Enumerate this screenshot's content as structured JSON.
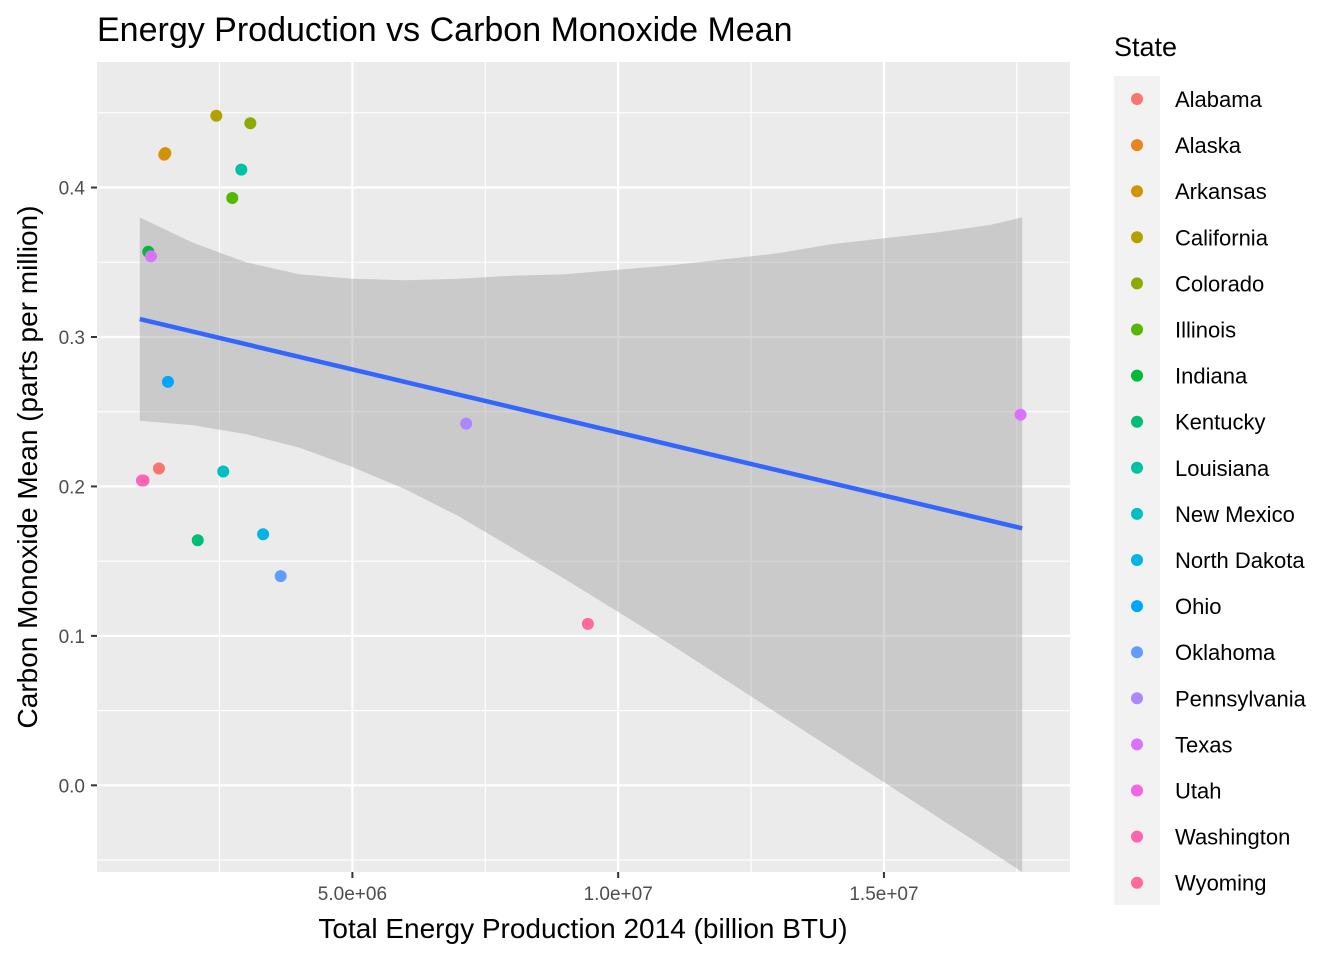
{
  "chart_data": {
    "type": "scatter",
    "title": "Energy Production vs Carbon Monoxide Mean",
    "xlabel": "Total Energy Production 2014 (billion BTU)",
    "ylabel": "Carbon Monoxide Mean (parts per million)",
    "xlim": [
      195000,
      18500000
    ],
    "ylim": [
      -0.058,
      0.484
    ],
    "x_ticks": [
      5000000,
      10000000,
      15000000
    ],
    "x_tick_labels": [
      "5.0e+06",
      "1.0e+07",
      "1.5e+07"
    ],
    "y_ticks": [
      0.0,
      0.1,
      0.2,
      0.3,
      0.4
    ],
    "y_tick_labels": [
      "0.0",
      "0.1",
      "0.2",
      "0.3",
      "0.4"
    ],
    "grid": true,
    "legend_title": "State",
    "legend_position": "right",
    "panel_background": "#ebebeb",
    "series": [
      {
        "name": "Alabama",
        "color": "#F8766D",
        "points": [
          [
            1360000,
            0.212
          ]
        ]
      },
      {
        "name": "Alaska",
        "color": "#E7851E",
        "points": [
          [
            1460000,
            0.422
          ]
        ]
      },
      {
        "name": "Arkansas",
        "color": "#D09400",
        "points": [
          [
            1480000,
            0.423
          ]
        ]
      },
      {
        "name": "California",
        "color": "#B2A100",
        "points": [
          [
            2440000,
            0.448
          ]
        ]
      },
      {
        "name": "Colorado",
        "color": "#8BAB00",
        "points": [
          [
            3080000,
            0.443
          ]
        ]
      },
      {
        "name": "Illinois",
        "color": "#55B700",
        "points": [
          [
            2740000,
            0.393
          ]
        ]
      },
      {
        "name": "Indiana",
        "color": "#00BA38",
        "points": [
          [
            1160000,
            0.357
          ]
        ]
      },
      {
        "name": "Kentucky",
        "color": "#00BF74",
        "points": [
          [
            2090000,
            0.164
          ]
        ]
      },
      {
        "name": "Louisiana",
        "color": "#00C1A3",
        "points": [
          [
            2910000,
            0.412
          ]
        ]
      },
      {
        "name": "New Mexico",
        "color": "#00BFC4",
        "points": [
          [
            2570000,
            0.21
          ]
        ]
      },
      {
        "name": "North Dakota",
        "color": "#00B4E6",
        "points": [
          [
            3320000,
            0.168
          ]
        ]
      },
      {
        "name": "Ohio",
        "color": "#00A5FF",
        "points": [
          [
            1530000,
            0.27
          ]
        ]
      },
      {
        "name": "Oklahoma",
        "color": "#619CFF",
        "points": [
          [
            3650000,
            0.14
          ]
        ]
      },
      {
        "name": "Pennsylvania",
        "color": "#AC88FF",
        "points": [
          [
            7140000,
            0.242
          ]
        ]
      },
      {
        "name": "Texas",
        "color": "#DB72FB",
        "points": [
          [
            17570000,
            0.248
          ],
          [
            1210000,
            0.354
          ]
        ]
      },
      {
        "name": "Utah",
        "color": "#F564E3",
        "points": [
          [
            1040000,
            0.204
          ]
        ]
      },
      {
        "name": "Washington",
        "color": "#FF64B0",
        "points": [
          [
            1070000,
            0.204
          ]
        ]
      },
      {
        "name": "Wyoming",
        "color": "#FF6A98",
        "points": [
          [
            9430000,
            0.108
          ]
        ]
      }
    ],
    "smooth": {
      "method": "lm",
      "color": "#3366FF",
      "x": [
        1000000,
        17600000
      ],
      "y": [
        0.312,
        0.172
      ],
      "band": {
        "x": [
          1000000,
          2000000,
          3000000,
          4000000,
          5000000,
          6000000,
          7000000,
          8000000,
          9000000,
          10000000,
          11000000,
          12000000,
          13000000,
          14000000,
          15000000,
          16000000,
          17000000,
          17600000
        ],
        "lower": [
          0.244,
          0.241,
          0.235,
          0.226,
          0.213,
          0.198,
          0.18,
          0.159,
          0.138,
          0.116,
          0.094,
          0.071,
          0.048,
          0.025,
          0.002,
          -0.021,
          -0.044,
          -0.058
        ],
        "upper": [
          0.38,
          0.363,
          0.35,
          0.342,
          0.339,
          0.338,
          0.339,
          0.341,
          0.342,
          0.345,
          0.348,
          0.352,
          0.356,
          0.362,
          0.366,
          0.37,
          0.375,
          0.38
        ]
      }
    }
  }
}
